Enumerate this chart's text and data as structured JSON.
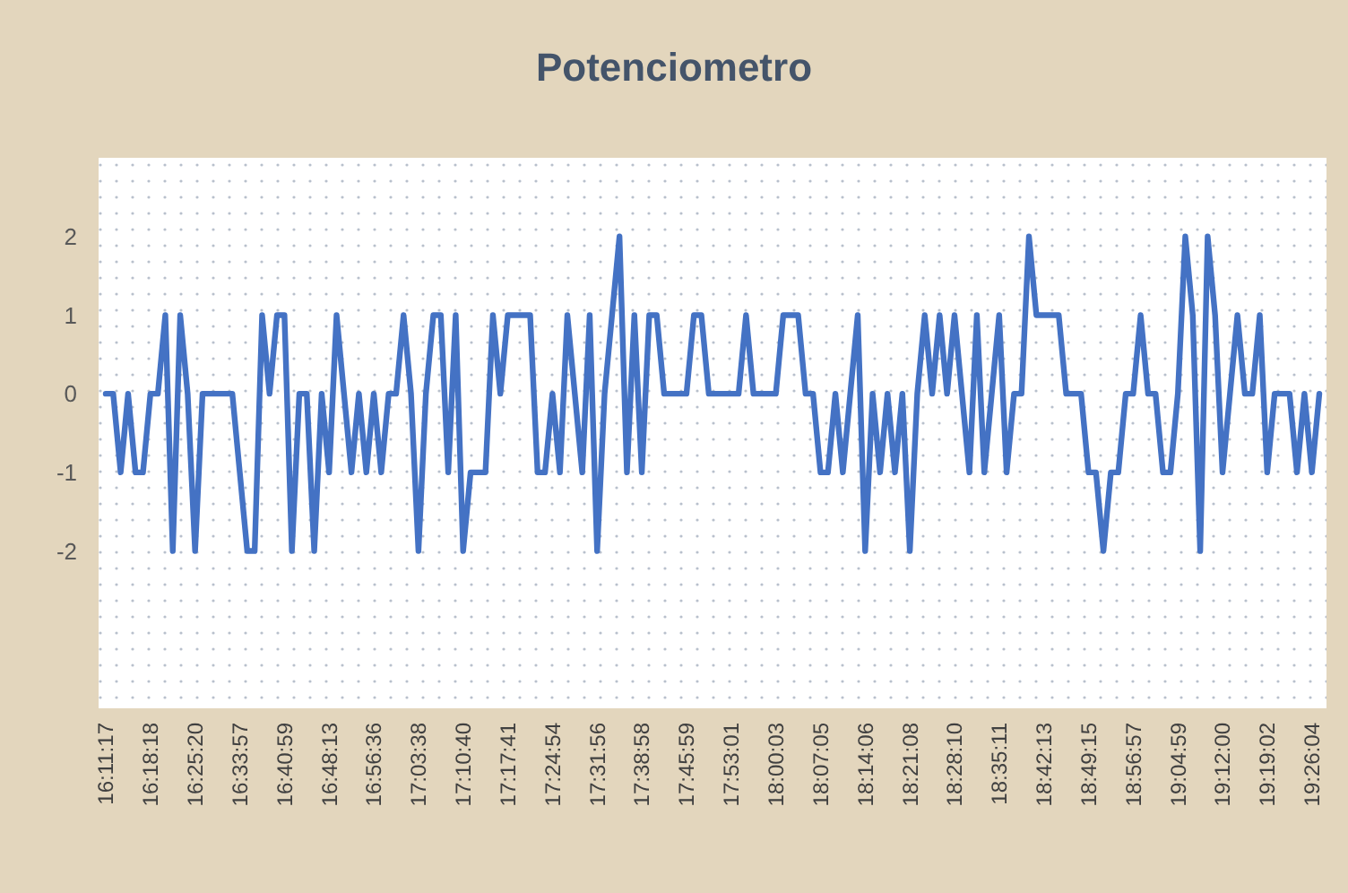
{
  "chart_data": {
    "type": "line",
    "title": "Potenciometro",
    "categories": [
      "16:11:17",
      null,
      null,
      null,
      null,
      null,
      "16:18:18",
      null,
      null,
      null,
      null,
      null,
      "16:25:20",
      null,
      null,
      null,
      null,
      null,
      "16:33:57",
      null,
      null,
      null,
      null,
      null,
      "16:40:59",
      null,
      null,
      null,
      null,
      null,
      "16:48:13",
      null,
      null,
      null,
      null,
      null,
      "16:56:36",
      null,
      null,
      null,
      null,
      null,
      "17:03:38",
      null,
      null,
      null,
      null,
      null,
      "17:10:40",
      null,
      null,
      null,
      null,
      null,
      "17:17:41",
      null,
      null,
      null,
      null,
      null,
      "17:24:54",
      null,
      null,
      null,
      null,
      null,
      "17:31:56",
      null,
      null,
      null,
      null,
      null,
      "17:38:58",
      null,
      null,
      null,
      null,
      null,
      "17:45:59",
      null,
      null,
      null,
      null,
      null,
      "17:53:01",
      null,
      null,
      null,
      null,
      null,
      "18:00:03",
      null,
      null,
      null,
      null,
      null,
      "18:07:05",
      null,
      null,
      null,
      null,
      null,
      "18:14:06",
      null,
      null,
      null,
      null,
      null,
      "18:21:08",
      null,
      null,
      null,
      null,
      null,
      "18:28:10",
      null,
      null,
      null,
      null,
      null,
      "18:35:11",
      null,
      null,
      null,
      null,
      null,
      "18:42:13",
      null,
      null,
      null,
      null,
      null,
      "18:49:15",
      null,
      null,
      null,
      null,
      null,
      "18:56:57",
      null,
      null,
      null,
      null,
      null,
      "19:04:59",
      null,
      null,
      null,
      null,
      null,
      "19:12:00",
      null,
      null,
      null,
      null,
      null,
      "19:19:02",
      null,
      null,
      null,
      null,
      null,
      "19:26:04",
      null
    ],
    "series": [
      {
        "color": "#4472c4",
        "values": [
          0,
          0,
          -1,
          0,
          -1,
          -1,
          0,
          0,
          1,
          -2,
          1,
          0,
          -2,
          0,
          0,
          0,
          0,
          0,
          -1,
          -2,
          -2,
          1,
          0,
          1,
          1,
          -2,
          0,
          0,
          -2,
          0,
          -1,
          1,
          0,
          -1,
          0,
          -1,
          0,
          -1,
          0,
          0,
          1,
          0,
          -2,
          0,
          1,
          1,
          -1,
          1,
          -2,
          -1,
          -1,
          -1,
          1,
          0,
          1,
          1,
          1,
          1,
          -1,
          -1,
          0,
          -1,
          1,
          0,
          -1,
          1,
          -2,
          0,
          1,
          2,
          -1,
          1,
          -1,
          1,
          1,
          0,
          0,
          0,
          0,
          1,
          1,
          0,
          0,
          0,
          0,
          0,
          1,
          0,
          0,
          0,
          0,
          1,
          1,
          1,
          0,
          0,
          -1,
          -1,
          0,
          -1,
          0,
          1,
          -2,
          0,
          -1,
          0,
          -1,
          0,
          -2,
          0,
          1,
          0,
          1,
          0,
          1,
          0,
          -1,
          1,
          -1,
          0,
          1,
          -1,
          0,
          0,
          2,
          1,
          1,
          1,
          1,
          0,
          0,
          0,
          -1,
          -1,
          -2,
          -1,
          -1,
          0,
          0,
          1,
          0,
          0,
          -1,
          -1,
          0,
          2,
          1,
          -2,
          2,
          1,
          -1,
          0,
          1,
          0,
          0,
          1,
          -1,
          0,
          0,
          0,
          -1,
          0,
          -1,
          0
        ]
      }
    ],
    "ylim": [
      -4,
      3
    ],
    "yticks": [
      -2,
      -1,
      0,
      1,
      2
    ],
    "grid": false,
    "marker": "none",
    "line_style": "solid"
  }
}
